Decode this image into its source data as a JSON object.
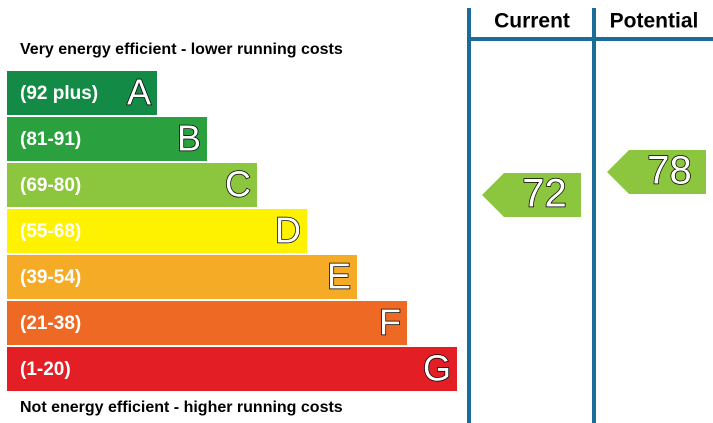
{
  "header": {
    "current": "Current",
    "potential": "Potential"
  },
  "top_note": "Very energy efficient - lower running costs",
  "bottom_note": "Not energy efficient - higher running costs",
  "bands": [
    {
      "range": "(92 plus)",
      "letter": "A",
      "color": "#138a46"
    },
    {
      "range": "(81-91)",
      "letter": "B",
      "color": "#2aa13e"
    },
    {
      "range": "(69-80)",
      "letter": "C",
      "color": "#8cc63f"
    },
    {
      "range": "(55-68)",
      "letter": "D",
      "color": "#fff200"
    },
    {
      "range": "(39-54)",
      "letter": "E",
      "color": "#f6ab26"
    },
    {
      "range": "(21-38)",
      "letter": "F",
      "color": "#ee6a24"
    },
    {
      "range": "(1-20)",
      "letter": "G",
      "color": "#e31e24"
    }
  ],
  "current": {
    "value": 72,
    "color": "#8cc63f"
  },
  "potential": {
    "value": 78,
    "color": "#8cc63f"
  }
}
